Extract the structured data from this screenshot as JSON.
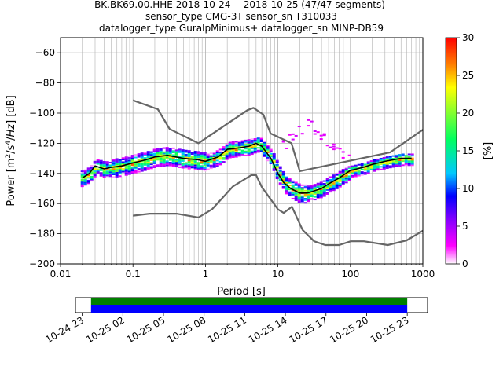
{
  "title": {
    "line1": "BK.BK69.00.HHE   2018-10-24 -- 2018-10-25  (47/47 segments)",
    "line2": "sensor_type CMG-3T sensor_sn T310033",
    "line3": "datalogger_type GuralpMinimus+ datalogger_sn MINP-DB59"
  },
  "chart_data": {
    "type": "heatmap",
    "xlabel": "Period [s]",
    "ylabel": "Power [m²/s⁴/Hz] [dB]",
    "xscale": "log",
    "xlim": [
      0.01,
      1000
    ],
    "ylim": [
      -200,
      -50
    ],
    "grid": true,
    "x_ticks": [
      {
        "value": 0.01,
        "label": "0.01"
      },
      {
        "value": 0.1,
        "label": "0.1"
      },
      {
        "value": 1,
        "label": "1"
      },
      {
        "value": 10,
        "label": "10"
      },
      {
        "value": 100,
        "label": "100"
      },
      {
        "value": 1000,
        "label": "1000"
      }
    ],
    "y_ticks": [
      {
        "value": -60,
        "label": "−60"
      },
      {
        "value": -80,
        "label": "−80"
      },
      {
        "value": -100,
        "label": "−100"
      },
      {
        "value": -120,
        "label": "−120"
      },
      {
        "value": -140,
        "label": "−140"
      },
      {
        "value": -160,
        "label": "−160"
      },
      {
        "value": -180,
        "label": "−180"
      },
      {
        "value": -200,
        "label": "−200"
      }
    ],
    "nhnm": {
      "period": [
        0.1,
        0.22,
        0.32,
        0.8,
        3.8,
        4.6,
        6.3,
        7.9,
        15.4,
        20,
        354.8,
        1000
      ],
      "db": [
        -91.5,
        -97.4,
        -110.5,
        -120,
        -98,
        -96.5,
        -101,
        -113.5,
        -120,
        -138.5,
        -126,
        -111
      ]
    },
    "nlnm": {
      "period": [
        0.1,
        0.17,
        0.4,
        0.8,
        1.24,
        2.4,
        4.3,
        5.0,
        6.0,
        10.0,
        12.0,
        15.6,
        21.9,
        31.6,
        45,
        70,
        101,
        154,
        328,
        600,
        1000
      ],
      "db": [
        -168,
        -166.7,
        -166.7,
        -169.2,
        -163.7,
        -148.6,
        -141.1,
        -141.1,
        -149,
        -163.8,
        -166.2,
        -162.1,
        -177.5,
        -185,
        -187.5,
        -187.5,
        -185,
        -185,
        -187.5,
        -184.4,
        -178
      ]
    },
    "median": {
      "period": [
        0.02,
        0.025,
        0.03,
        0.04,
        0.05,
        0.07,
        0.1,
        0.15,
        0.2,
        0.3,
        0.5,
        0.8,
        1.0,
        1.5,
        2,
        3,
        4,
        5,
        6,
        8,
        10,
        12,
        15,
        20,
        25,
        30,
        40,
        50,
        70,
        100,
        150,
        200,
        300,
        500,
        700
      ],
      "db": [
        -143,
        -140,
        -135,
        -137,
        -136,
        -135,
        -133,
        -131,
        -129,
        -128,
        -130,
        -131,
        -132,
        -129,
        -124,
        -123,
        -122,
        -120,
        -122,
        -130,
        -140,
        -146,
        -150,
        -153,
        -153,
        -152,
        -150,
        -147,
        -143,
        -138,
        -136,
        -134,
        -132,
        -130,
        -130
      ]
    },
    "nonstationary": {
      "period": [
        10,
        12,
        15,
        18,
        20,
        25,
        30,
        40,
        50,
        70,
        100
      ],
      "db": [
        -124,
        -120,
        -116,
        -112,
        -110,
        -109,
        -110,
        -113,
        -118,
        -125,
        -133
      ]
    },
    "colorbar": {
      "label": "[%]",
      "range": [
        0,
        30
      ],
      "ticks": [
        {
          "value": 0,
          "label": "0"
        },
        {
          "value": 5,
          "label": "5"
        },
        {
          "value": 10,
          "label": "10"
        },
        {
          "value": 15,
          "label": "15"
        },
        {
          "value": 20,
          "label": "20"
        },
        {
          "value": 25,
          "label": "25"
        },
        {
          "value": 30,
          "label": "30"
        }
      ],
      "colors": [
        "#ffffff",
        "#ff00ff",
        "#8000ff",
        "#0000ff",
        "#00c8ff",
        "#00ff60",
        "#ffff00",
        "#ff8000",
        "#ff0000"
      ]
    },
    "timeline": {
      "start_hour": 22.5,
      "end_hour": 48.5,
      "data_start_hour": 23.65,
      "data_end_hour": 47.0,
      "tick_labels": [
        {
          "hour": 23,
          "label": "10-24 23"
        },
        {
          "hour": 26,
          "label": "10-25 02"
        },
        {
          "hour": 29,
          "label": "10-25 05"
        },
        {
          "hour": 32,
          "label": "10-25 08"
        },
        {
          "hour": 35,
          "label": "10-25 11"
        },
        {
          "hour": 38,
          "label": "10-25 14"
        },
        {
          "hour": 41,
          "label": "10-25 17"
        },
        {
          "hour": 44,
          "label": "10-25 20"
        },
        {
          "hour": 47,
          "label": "10-25 23"
        }
      ],
      "top_color": "#008000",
      "bottom_color": "#0000ff"
    }
  }
}
